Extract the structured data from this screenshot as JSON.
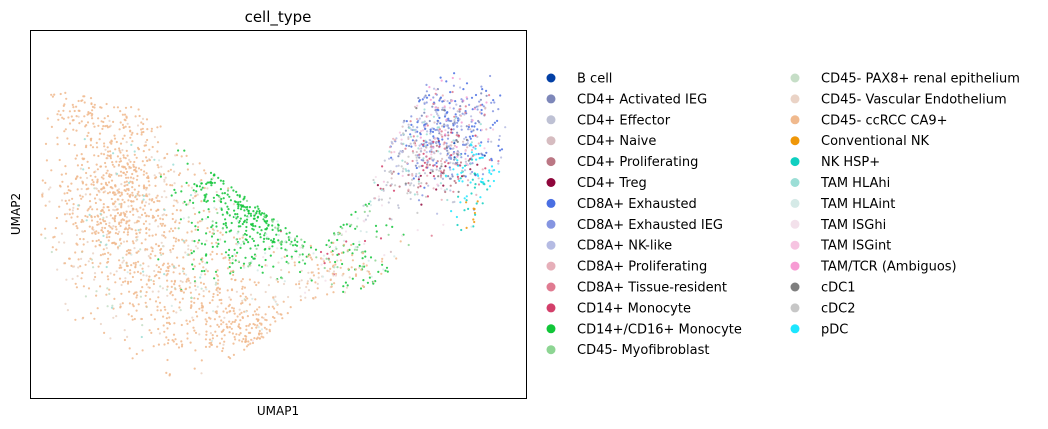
{
  "chart_data": {
    "type": "scatter",
    "title": "cell_type",
    "xlabel": "UMAP1",
    "ylabel": "UMAP2",
    "xlim": [
      0,
      100
    ],
    "ylim": [
      0,
      100
    ],
    "grid": false,
    "ticks_visible": false,
    "legend": {
      "placement": "right",
      "columns": 2
    },
    "series": [
      {
        "name": "B cell",
        "color": "#023fa5",
        "regions": [
          [
            85,
            70,
            4,
            9,
            4
          ]
        ]
      },
      {
        "name": "CD4+ Activated IEG",
        "color": "#7d87b9",
        "regions": [
          [
            83,
            72,
            10,
            12,
            70
          ]
        ]
      },
      {
        "name": "CD4+ Effector",
        "color": "#bec1d4",
        "regions": [
          [
            80,
            68,
            12,
            14,
            60
          ],
          [
            70,
            55,
            8,
            8,
            15
          ]
        ]
      },
      {
        "name": "CD4+ Naive",
        "color": "#d6bcc0",
        "regions": [
          [
            82,
            70,
            10,
            12,
            30
          ]
        ]
      },
      {
        "name": "CD4+ Proliferating",
        "color": "#bb7784",
        "regions": [
          [
            80,
            60,
            8,
            8,
            25
          ]
        ]
      },
      {
        "name": "CD4+ Treg",
        "color": "#8e063b",
        "regions": [
          [
            82,
            62,
            8,
            8,
            15
          ]
        ]
      },
      {
        "name": "CD8A+ Exhausted",
        "color": "#4a6fe3",
        "regions": [
          [
            84,
            74,
            10,
            12,
            120
          ]
        ]
      },
      {
        "name": "CD8A+ Exhausted IEG",
        "color": "#8595e1",
        "regions": [
          [
            84,
            72,
            10,
            12,
            90
          ]
        ]
      },
      {
        "name": "CD8A+ NK-like",
        "color": "#b5bbe3",
        "regions": [
          [
            82,
            70,
            11,
            12,
            70
          ]
        ]
      },
      {
        "name": "CD8A+ Proliferating",
        "color": "#e6afb9",
        "regions": [
          [
            82,
            68,
            10,
            12,
            40
          ]
        ]
      },
      {
        "name": "CD8A+ Tissue-resident",
        "color": "#e07b91",
        "regions": [
          [
            84,
            72,
            10,
            12,
            40
          ]
        ]
      },
      {
        "name": "CD14+ Monocyte",
        "color": "#d33f6a",
        "regions": [
          [
            80,
            62,
            8,
            10,
            30
          ],
          [
            62,
            40,
            8,
            8,
            10
          ]
        ]
      },
      {
        "name": "CD14+/CD16+ Monocyte",
        "color": "#11c638",
        "regions": [
          [
            45,
            58,
            10,
            16,
            260
          ],
          [
            58,
            45,
            10,
            10,
            80
          ],
          [
            38,
            40,
            8,
            8,
            30
          ],
          [
            72,
            30,
            8,
            6,
            20
          ]
        ]
      },
      {
        "name": "CD45- Myofibroblast",
        "color": "#8dd593",
        "regions": [
          [
            55,
            48,
            14,
            12,
            60
          ]
        ]
      },
      {
        "name": "CD45- PAX8+ renal epithelium",
        "color": "#c6dec7",
        "regions": [
          [
            22,
            35,
            16,
            22,
            40
          ]
        ]
      },
      {
        "name": "CD45- Vascular Endothelium",
        "color": "#ead3c6",
        "regions": [
          [
            22,
            48,
            16,
            26,
            200
          ],
          [
            55,
            28,
            18,
            10,
            60
          ]
        ]
      },
      {
        "name": "CD45- ccRCC CA9+",
        "color": "#f0b98d",
        "regions": [
          [
            18,
            55,
            12,
            20,
            650
          ],
          [
            30,
            30,
            14,
            14,
            300
          ],
          [
            48,
            18,
            14,
            8,
            180
          ],
          [
            62,
            35,
            10,
            8,
            70
          ],
          [
            10,
            78,
            8,
            8,
            80
          ]
        ]
      },
      {
        "name": "Conventional NK",
        "color": "#ef9708",
        "regions": [
          [
            91,
            52,
            3,
            6,
            8
          ]
        ]
      },
      {
        "name": "NK HSP+",
        "color": "#0fcfc0",
        "regions": [
          [
            90,
            55,
            5,
            8,
            25
          ]
        ]
      },
      {
        "name": "TAM HLAhi",
        "color": "#9cded6",
        "regions": [
          [
            78,
            70,
            12,
            14,
            40
          ],
          [
            22,
            50,
            16,
            24,
            30
          ]
        ]
      },
      {
        "name": "TAM HLAint",
        "color": "#d5eae7",
        "regions": [
          [
            50,
            40,
            22,
            20,
            60
          ]
        ]
      },
      {
        "name": "TAM ISGhi",
        "color": "#f3e1eb",
        "regions": [
          [
            60,
            40,
            20,
            16,
            30
          ]
        ]
      },
      {
        "name": "TAM ISGint",
        "color": "#f6c4e1",
        "regions": [
          [
            82,
            72,
            10,
            12,
            30
          ]
        ]
      },
      {
        "name": "TAM/TCR (Ambiguos)",
        "color": "#f79cd4",
        "regions": [
          [
            84,
            78,
            8,
            10,
            20
          ]
        ]
      },
      {
        "name": "cDC1",
        "color": "#7f7f7f",
        "regions": [
          [
            82,
            68,
            8,
            10,
            15
          ]
        ]
      },
      {
        "name": "cDC2",
        "color": "#c7c7c7",
        "regions": [
          [
            75,
            62,
            10,
            12,
            30
          ]
        ]
      },
      {
        "name": "pDC",
        "color": "#1ce6ff",
        "regions": [
          [
            90,
            60,
            5,
            8,
            40
          ]
        ]
      }
    ]
  }
}
